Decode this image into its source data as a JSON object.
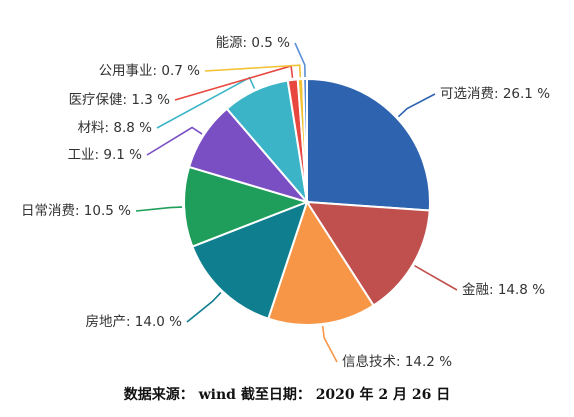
{
  "chart_data": {
    "type": "pie",
    "start_angle_deg": 0,
    "direction": "clockwise",
    "slices": [
      {
        "name": "可选消费",
        "value": 26.1,
        "label": "可选消费: 26.1 %",
        "color": "#2e63b0"
      },
      {
        "name": "金融",
        "value": 14.8,
        "label": "金融: 14.8 %",
        "color": "#c0504d"
      },
      {
        "name": "信息技术",
        "value": 14.2,
        "label": "信息技术: 14.2 %",
        "color": "#f79646"
      },
      {
        "name": "房地产",
        "value": 14.0,
        "label": "房地产: 14.0 %",
        "color": "#0f7f8f"
      },
      {
        "name": "日常消费",
        "value": 10.5,
        "label": "日常消费: 10.5 %",
        "color": "#1e9e5a"
      },
      {
        "name": "工业",
        "value": 9.1,
        "label": "工业: 9.1 %",
        "color": "#7b4fc4"
      },
      {
        "name": "材料",
        "value": 8.8,
        "label": "材料: 8.8 %",
        "color": "#3cb4c8"
      },
      {
        "name": "医疗保健",
        "value": 1.3,
        "label": "医疗保健: 1.3 %",
        "color": "#e8473f"
      },
      {
        "name": "公用事业",
        "value": 0.7,
        "label": "公用事业: 0.7 %",
        "color": "#f2c233"
      },
      {
        "name": "能源",
        "value": 0.5,
        "label": "能源: 0.5 %",
        "color": "#5b8fd6"
      }
    ]
  },
  "source": {
    "text": "数据来源： wind  截至日期： 2020 年 2 月 26 日"
  }
}
